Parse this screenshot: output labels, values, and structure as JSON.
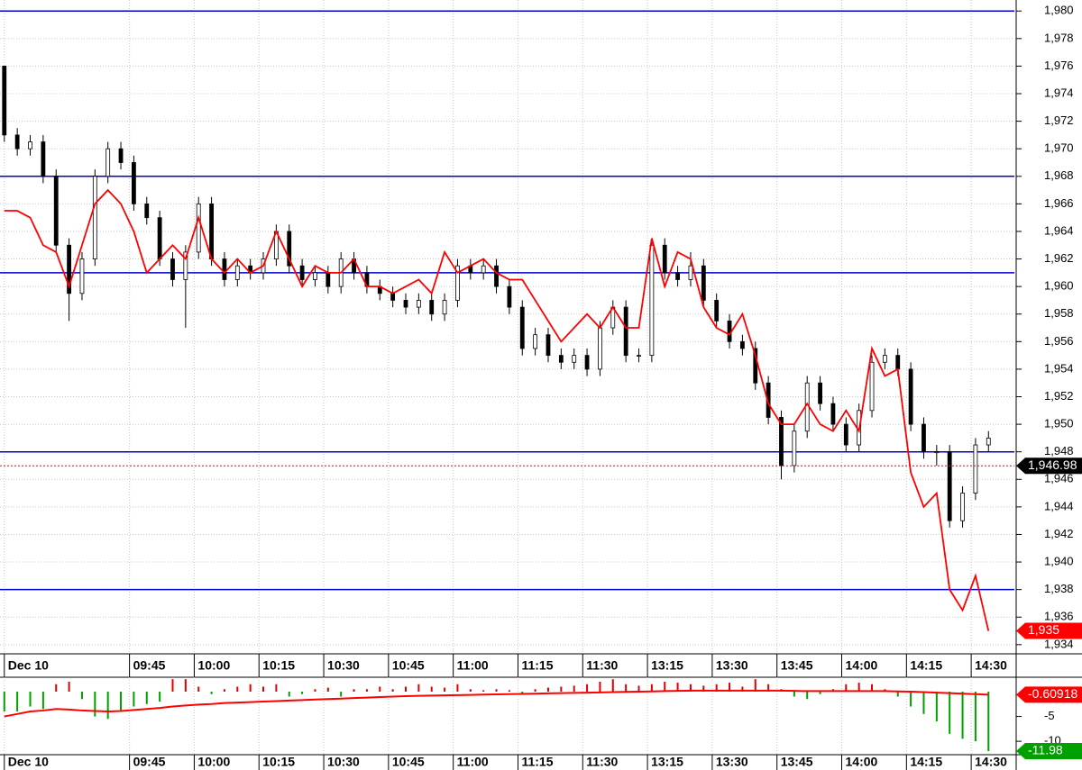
{
  "chart_data": [
    {
      "type": "candlestick",
      "x": [
        1,
        4,
        7,
        10,
        13,
        16,
        19,
        22,
        25,
        28,
        31,
        34,
        37,
        40,
        43,
        46,
        49,
        52,
        55,
        58,
        61,
        64,
        67,
        70,
        73,
        76,
        79,
        82,
        85,
        88,
        91,
        94,
        97,
        100,
        103,
        106,
        109,
        112,
        115,
        118,
        121,
        124,
        127,
        130,
        133,
        136,
        139,
        142,
        145,
        148,
        151,
        154,
        157,
        160,
        163,
        166,
        169,
        172,
        175,
        178,
        181,
        184,
        187,
        190,
        193,
        196,
        199,
        202,
        205,
        208,
        211,
        214,
        217,
        220,
        223,
        226,
        229
      ],
      "open": [
        1976,
        1971,
        1970,
        1970.5,
        1968,
        1963,
        1959.5,
        1962,
        1968,
        1970,
        1969,
        1966,
        1965,
        1962,
        1960.5,
        1962.5,
        1966,
        1962,
        1960.5,
        1961.5,
        1961,
        1962,
        1964,
        1961.5,
        1960.5,
        1961,
        1960,
        1962,
        1961,
        1960,
        1959.5,
        1959,
        1958.5,
        1959,
        1958,
        1959,
        1961.5,
        1961,
        1961.5,
        1960,
        1958.5,
        1955.5,
        1956.5,
        1955,
        1954.5,
        1955,
        1954,
        1957,
        1958.5,
        1955,
        1955,
        1963,
        1961,
        1960.5,
        1961.5,
        1959,
        1957.5,
        1956,
        1955.5,
        1953,
        1950.5,
        1947,
        1949.5,
        1953,
        1951.5,
        1950,
        1948.5,
        1951,
        1954.5,
        1955,
        1954,
        1950,
        1948,
        1948,
        1943,
        1945,
        1948.5
      ],
      "high": [
        1976,
        1971.5,
        1971,
        1971,
        1968.5,
        1963.5,
        1962.5,
        1968.5,
        1970.5,
        1970.5,
        1969.5,
        1966.5,
        1965.5,
        1962.5,
        1963,
        1966.5,
        1966.5,
        1962.5,
        1962,
        1962,
        1962.5,
        1964.5,
        1964.5,
        1962,
        1961.5,
        1961.5,
        1962.5,
        1962.5,
        1961.5,
        1960.5,
        1960,
        1959.5,
        1959.5,
        1959.5,
        1959.5,
        1962,
        1962,
        1962,
        1962,
        1960.5,
        1959,
        1957,
        1957,
        1955.5,
        1955.5,
        1955.5,
        1957.5,
        1959,
        1959,
        1955.5,
        1963.5,
        1963.5,
        1961.5,
        1962.5,
        1962,
        1959.5,
        1958,
        1956.5,
        1956,
        1953.5,
        1951,
        1950,
        1953.5,
        1953.5,
        1952,
        1950.5,
        1951.5,
        1955,
        1955.5,
        1955.5,
        1954.5,
        1950.5,
        1948.5,
        1948.5,
        1945.5,
        1949,
        1949.5
      ],
      "low": [
        1970.5,
        1969.5,
        1969.5,
        1967.5,
        1962.5,
        1957.5,
        1959,
        1961.5,
        1967.5,
        1968.5,
        1965.5,
        1964.5,
        1961.5,
        1960,
        1957,
        1962,
        1961.5,
        1960,
        1960,
        1960.5,
        1960.5,
        1961.5,
        1961,
        1960,
        1960,
        1959.5,
        1959.5,
        1960.5,
        1959.5,
        1959,
        1958.5,
        1958,
        1958,
        1957.5,
        1957.5,
        1958.5,
        1960.5,
        1960.5,
        1959.5,
        1958,
        1955,
        1955,
        1954.5,
        1954,
        1954,
        1953.5,
        1953.5,
        1956.5,
        1954.5,
        1954.5,
        1954.5,
        1960.5,
        1960,
        1960,
        1958.5,
        1957,
        1955.5,
        1955,
        1952.5,
        1950,
        1946,
        1946.5,
        1949,
        1951,
        1949.5,
        1948,
        1948,
        1950.5,
        1954,
        1953.5,
        1949.5,
        1947.5,
        1947,
        1942.5,
        1942.5,
        1944.5,
        1948
      ],
      "close": [
        1971,
        1970,
        1970.5,
        1968,
        1963,
        1959.5,
        1962,
        1968,
        1970,
        1969,
        1966,
        1965,
        1962,
        1960.5,
        1962.5,
        1966,
        1962,
        1960.5,
        1961.5,
        1961,
        1962,
        1964,
        1961.5,
        1960.5,
        1961,
        1960,
        1962,
        1961,
        1960,
        1959.5,
        1959,
        1958.5,
        1959,
        1958,
        1959,
        1961.5,
        1961,
        1961.5,
        1960,
        1958.5,
        1955.5,
        1956.5,
        1955,
        1954.5,
        1955,
        1954,
        1957,
        1958.5,
        1955,
        1955,
        1963,
        1961,
        1960.5,
        1961.5,
        1959,
        1957.5,
        1956,
        1955.5,
        1953,
        1950.5,
        1947,
        1949.5,
        1953,
        1951.5,
        1950,
        1948.5,
        1951,
        1954.5,
        1955,
        1954,
        1950,
        1948,
        1948,
        1943,
        1945,
        1948.5,
        1949
      ],
      "color_up": "#ffffff",
      "color_down": "#000000",
      "series": [
        {
          "color": "#ff0000",
          "values": [
            1965.5,
            1965.5,
            1965,
            1963,
            1962.5,
            1960,
            1963,
            1966,
            1967,
            1966,
            1964,
            1961,
            1962,
            1963,
            1962,
            1965,
            1962,
            1961,
            1962,
            1961,
            1961.5,
            1964,
            1962,
            1960,
            1961.5,
            1961,
            1961,
            1962,
            1960,
            1960,
            1959.5,
            1960,
            1960.5,
            1959.5,
            1962.5,
            1961,
            1961.5,
            1962,
            1961,
            1960.5,
            1960.5,
            1959,
            1957.5,
            1956,
            1957,
            1958,
            1957,
            1958.5,
            1957,
            1957,
            1963.5,
            1960,
            1962.5,
            1962,
            1958.5,
            1957,
            1956.5,
            1958,
            1955,
            1951.5,
            1950,
            1950,
            1951.5,
            1950,
            1949.5,
            1951,
            1949.5,
            1955.5,
            1953.5,
            1954,
            1946.5,
            1944,
            1945,
            1938,
            1936.5,
            1939,
            1935
          ]
        }
      ],
      "hlines": [
        1980,
        1968,
        1961,
        1948,
        1938
      ],
      "hline_color": "#0000cc",
      "markers": [
        {
          "value": 1946.98,
          "label": "1,946.98",
          "color": "#000000",
          "line_color": "#ff0000"
        },
        {
          "value": 1935,
          "label": "1,935",
          "color": "#ff0000"
        }
      ],
      "xlim": [
        0,
        235
      ],
      "xticks": [
        {
          "value": 1,
          "label": "Dec 10"
        },
        {
          "value": 30,
          "label": "09:45"
        },
        {
          "value": 45,
          "label": "10:00"
        },
        {
          "value": 60,
          "label": "10:15"
        },
        {
          "value": 75,
          "label": "10:30"
        },
        {
          "value": 90,
          "label": "10:45"
        },
        {
          "value": 105,
          "label": "11:00"
        },
        {
          "value": 120,
          "label": "11:15"
        },
        {
          "value": 135,
          "label": "11:30"
        },
        {
          "value": 150,
          "label": "13:15"
        },
        {
          "value": 165,
          "label": "13:30"
        },
        {
          "value": 180,
          "label": "13:45"
        },
        {
          "value": 195,
          "label": "14:00"
        },
        {
          "value": 210,
          "label": "14:15"
        },
        {
          "value": 225,
          "label": "14:30"
        }
      ],
      "ylim": [
        1933.4,
        1980.8
      ],
      "yticks": [
        {
          "value": 1934,
          "label": "1,934"
        },
        {
          "value": 1936,
          "label": "1,936"
        },
        {
          "value": 1938,
          "label": "1,938"
        },
        {
          "value": 1940,
          "label": "1,940"
        },
        {
          "value": 1942,
          "label": "1,942"
        },
        {
          "value": 1944,
          "label": "1,944"
        },
        {
          "value": 1946,
          "label": "1,946"
        },
        {
          "value": 1948,
          "label": "1,948"
        },
        {
          "value": 1950,
          "label": "1,950"
        },
        {
          "value": 1952,
          "label": "1,952"
        },
        {
          "value": 1954,
          "label": "1,954"
        },
        {
          "value": 1956,
          "label": "1,956"
        },
        {
          "value": 1958,
          "label": "1,958"
        },
        {
          "value": 1960,
          "label": "1,960"
        },
        {
          "value": 1962,
          "label": "1,962"
        },
        {
          "value": 1964,
          "label": "1,964"
        },
        {
          "value": 1966,
          "label": "1,966"
        },
        {
          "value": 1968,
          "label": "1,968"
        },
        {
          "value": 1970,
          "label": "1,970"
        },
        {
          "value": 1972,
          "label": "1,972"
        },
        {
          "value": 1974,
          "label": "1,974"
        },
        {
          "value": 1976,
          "label": "1,976"
        },
        {
          "value": 1978,
          "label": "1,978"
        },
        {
          "value": 1980,
          "label": "1,980"
        }
      ],
      "grid": true
    },
    {
      "type": "histogram",
      "values": [
        -4,
        -4,
        -3,
        -3.5,
        1.5,
        2,
        -1.5,
        -5,
        -5.5,
        -4,
        -3,
        -2.5,
        -2,
        2.5,
        2.5,
        1,
        -0.5,
        0.5,
        1,
        1.5,
        1,
        1.5,
        -1,
        -0.5,
        0.5,
        0.8,
        -1,
        0.5,
        0.5,
        1,
        0.5,
        1,
        1.5,
        1,
        0.8,
        1.5,
        0.5,
        0.3,
        0.5,
        0.3,
        -0.5,
        0.5,
        0.8,
        1,
        1.2,
        1.5,
        2,
        2.5,
        1.5,
        1.2,
        1.5,
        2,
        1.8,
        1.5,
        1.2,
        1.5,
        1.8,
        1,
        2.5,
        1.5,
        0.5,
        -1,
        -1.5,
        -0.5,
        0.5,
        1.5,
        1.8,
        1.5,
        0.5,
        -1,
        -3,
        -4.5,
        -6,
        -8.5,
        -9.5,
        -10,
        -11.98
      ],
      "color_up": "#e00000",
      "color_down": "#00a000",
      "series": [
        {
          "color": "#ff0000",
          "values": [
            -5,
            -4.5,
            -4,
            -3.8,
            -3.5,
            -3.6,
            -3.8,
            -3.9,
            -4,
            -3.9,
            -3.7,
            -3.5,
            -3.3,
            -3,
            -2.8,
            -2.6,
            -2.5,
            -2.3,
            -2.2,
            -2.1,
            -2,
            -1.9,
            -1.8,
            -1.7,
            -1.6,
            -1.5,
            -1.4,
            -1.3,
            -1.2,
            -1.1,
            -1,
            -0.9,
            -0.85,
            -0.8,
            -0.75,
            -0.7,
            -0.65,
            -0.6,
            -0.55,
            -0.5,
            -0.45,
            -0.4,
            -0.35,
            -0.3,
            -0.25,
            -0.2,
            -0.15,
            -0.1,
            -0.05,
            0,
            0.05,
            0.1,
            0.15,
            0.2,
            0.2,
            0.2,
            0.2,
            0.2,
            0.2,
            0.2,
            0.2,
            0.15,
            0.1,
            0.1,
            0.1,
            0.1,
            0.1,
            0.1,
            0.1,
            0.05,
            0,
            -0.1,
            -0.2,
            -0.3,
            -0.4,
            -0.5,
            -0.60918
          ]
        }
      ],
      "markers": [
        {
          "value": -0.60918,
          "label": "-0.60918",
          "color": "#ff0000"
        },
        {
          "value": -11.98,
          "label": "-11.98",
          "color": "#00a000"
        }
      ],
      "ylim": [
        -12.7,
        2.9
      ],
      "yticks": [
        -5,
        -10
      ]
    }
  ]
}
